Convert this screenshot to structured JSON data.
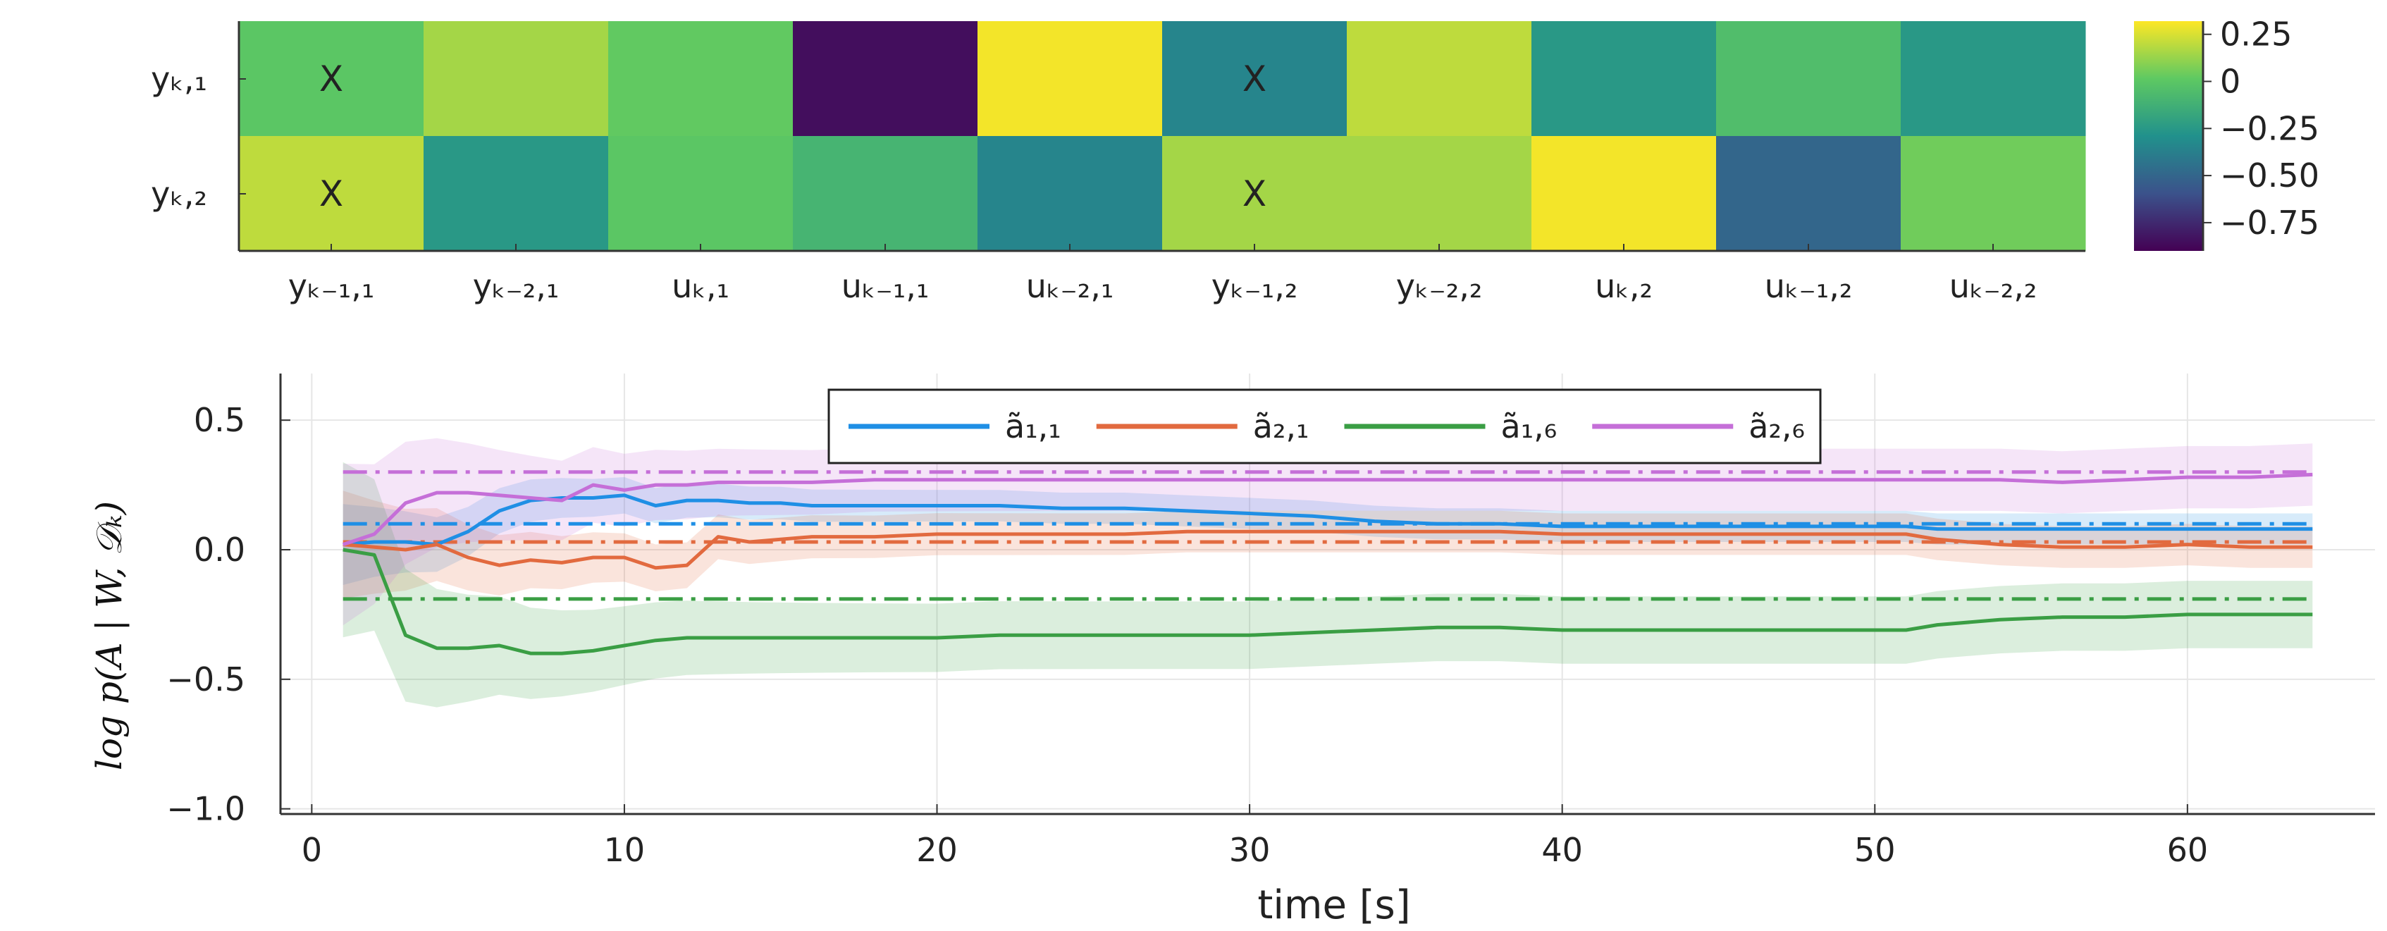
{
  "chart_data": [
    {
      "type": "heatmap",
      "row_labels": [
        "yₖ,₁",
        "yₖ,₂"
      ],
      "col_labels": [
        "yₖ₋₁,₁",
        "yₖ₋₂,₁",
        "uₖ,₁",
        "uₖ₋₁,₁",
        "uₖ₋₂,₁",
        "yₖ₋₁,₂",
        "yₖ₋₂,₂",
        "uₖ,₂",
        "uₖ₋₁,₂",
        "uₖ₋₂,₂"
      ],
      "values": [
        [
          0.0,
          0.15,
          0.02,
          -0.85,
          0.3,
          -0.35,
          0.2,
          -0.25,
          -0.05,
          -0.25
        ],
        [
          0.2,
          -0.25,
          0.0,
          -0.1,
          -0.35,
          0.15,
          0.15,
          0.3,
          -0.5,
          0.05
        ]
      ],
      "marked": [
        [
          0,
          0
        ],
        [
          0,
          5
        ],
        [
          1,
          0
        ],
        [
          1,
          5
        ]
      ],
      "marker_text": "X",
      "colorbar": {
        "range": [
          -0.9,
          0.32
        ],
        "ticks": [
          0.25,
          0,
          -0.25,
          -0.5,
          -0.75
        ],
        "tick_labels": [
          "0.25",
          "0",
          "−0.25",
          "−0.50",
          "−0.75"
        ],
        "colormap": [
          "#440154",
          "#3b528b",
          "#21918c",
          "#5ec962",
          "#fde725"
        ]
      }
    },
    {
      "type": "line",
      "xlabel": "time [s]",
      "ylabel": "log p(A | W, 𝒟ₖ)",
      "xlim": [
        -1,
        66
      ],
      "ylim": [
        -1.02,
        0.68
      ],
      "xticks": [
        0,
        10,
        20,
        30,
        40,
        50,
        60
      ],
      "xtick_labels": [
        "0",
        "10",
        "20",
        "30",
        "40",
        "50",
        "60"
      ],
      "yticks": [
        0.5,
        0.0,
        -0.5,
        -1.0
      ],
      "ytick_labels": [
        "0.5",
        "0.0",
        "−0.5",
        "−1.0"
      ],
      "grid": true,
      "legend": {
        "position": "top-center"
      },
      "x": [
        1,
        2,
        3,
        4,
        5,
        6,
        7,
        8,
        9,
        10,
        11,
        12,
        13,
        14,
        15,
        16,
        18,
        20,
        22,
        24,
        26,
        28,
        30,
        32,
        34,
        36,
        38,
        40,
        42,
        44,
        46,
        48,
        50,
        51,
        52,
        54,
        56,
        58,
        60,
        62,
        64
      ],
      "series": [
        {
          "name": "ã₁,₁",
          "color": "#1f8fe5",
          "true_value": 0.1,
          "band_width": 0.06,
          "values": [
            0.02,
            0.03,
            0.03,
            0.02,
            0.07,
            0.15,
            0.19,
            0.2,
            0.2,
            0.21,
            0.17,
            0.19,
            0.19,
            0.18,
            0.18,
            0.17,
            0.17,
            0.17,
            0.17,
            0.16,
            0.16,
            0.15,
            0.14,
            0.13,
            0.11,
            0.1,
            0.1,
            0.09,
            0.09,
            0.09,
            0.09,
            0.09,
            0.09,
            0.09,
            0.08,
            0.08,
            0.08,
            0.08,
            0.08,
            0.08,
            0.08
          ]
        },
        {
          "name": "ã₂,₁",
          "color": "#e26a3f",
          "true_value": 0.03,
          "band_width": 0.08,
          "values": [
            0.02,
            0.01,
            0.0,
            0.02,
            -0.03,
            -0.06,
            -0.04,
            -0.05,
            -0.03,
            -0.03,
            -0.07,
            -0.06,
            0.05,
            0.03,
            0.04,
            0.05,
            0.05,
            0.06,
            0.06,
            0.06,
            0.06,
            0.07,
            0.07,
            0.07,
            0.07,
            0.07,
            0.07,
            0.06,
            0.06,
            0.06,
            0.06,
            0.06,
            0.06,
            0.06,
            0.04,
            0.02,
            0.01,
            0.01,
            0.02,
            0.01,
            0.01
          ]
        },
        {
          "name": "ã₁,₆",
          "color": "#3a9e44",
          "true_value": -0.19,
          "band_width": 0.13,
          "values": [
            0.0,
            -0.02,
            -0.33,
            -0.38,
            -0.38,
            -0.37,
            -0.4,
            -0.4,
            -0.39,
            -0.37,
            -0.35,
            -0.34,
            -0.34,
            -0.34,
            -0.34,
            -0.34,
            -0.34,
            -0.34,
            -0.33,
            -0.33,
            -0.33,
            -0.33,
            -0.33,
            -0.32,
            -0.31,
            -0.3,
            -0.3,
            -0.31,
            -0.31,
            -0.31,
            -0.31,
            -0.31,
            -0.31,
            -0.31,
            -0.29,
            -0.27,
            -0.26,
            -0.26,
            -0.25,
            -0.25,
            -0.25
          ]
        },
        {
          "name": "ã₂,₆",
          "color": "#c56fd8",
          "true_value": 0.3,
          "band_width": 0.12,
          "values": [
            0.02,
            0.06,
            0.18,
            0.22,
            0.22,
            0.21,
            0.2,
            0.19,
            0.25,
            0.23,
            0.25,
            0.25,
            0.26,
            0.26,
            0.26,
            0.26,
            0.27,
            0.27,
            0.27,
            0.27,
            0.27,
            0.27,
            0.27,
            0.27,
            0.27,
            0.27,
            0.27,
            0.27,
            0.27,
            0.27,
            0.27,
            0.27,
            0.27,
            0.27,
            0.27,
            0.27,
            0.26,
            0.27,
            0.28,
            0.28,
            0.29
          ]
        }
      ]
    }
  ]
}
